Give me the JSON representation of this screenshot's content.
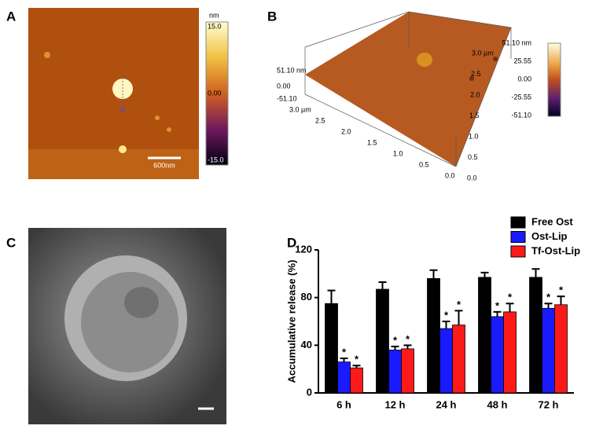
{
  "panels": {
    "A": {
      "label": "A",
      "colorbar_unit": "nm",
      "colorbar_labels": [
        "15.0",
        "0.00",
        "-15.0"
      ],
      "scale_bar": "600nm"
    },
    "B": {
      "label": "B",
      "z_labels": [
        "51.10 nm",
        "0.00",
        "-51.10"
      ],
      "y_labels": [
        "3.0 µm",
        "2.5",
        "2.0",
        "1.5",
        "1.0",
        "0.5",
        "0.0"
      ],
      "x_labels": [
        "3.0 µm",
        "2.5",
        "2.0",
        "1.5",
        "1.0",
        "0.5",
        "0.0"
      ],
      "colorbar_labels": [
        "51.10 nm",
        "25.55",
        "0.00",
        "-25.55",
        "-51.10"
      ]
    },
    "C": {
      "label": "C"
    },
    "D": {
      "label": "D"
    }
  },
  "chart_data": {
    "type": "bar",
    "y_label": "Accumulative release (%)",
    "categories": [
      "6 h",
      "12 h",
      "24 h",
      "48 h",
      "72 h"
    ],
    "series": [
      {
        "name": "Free Ost",
        "color": "#000000",
        "values": [
          75,
          87,
          96,
          97,
          97
        ],
        "errors": [
          11,
          6,
          7,
          4,
          7
        ]
      },
      {
        "name": "Ost-Lip",
        "color": "#1a1aff",
        "values": [
          26,
          36,
          54,
          64,
          71
        ],
        "errors": [
          3,
          3,
          6,
          4,
          4
        ],
        "annotations": [
          "*",
          "*",
          "*",
          "*",
          "*"
        ]
      },
      {
        "name": "Tf-Ost-Lip",
        "color": "#ff1a1a",
        "values": [
          21,
          37,
          57,
          68,
          74
        ],
        "errors": [
          2,
          3,
          12,
          7,
          7
        ],
        "annotations": [
          "*",
          "*",
          "*",
          "*",
          "*"
        ]
      }
    ],
    "ylim": [
      0,
      120
    ],
    "yticks": [
      0,
      40,
      80,
      120
    ]
  }
}
